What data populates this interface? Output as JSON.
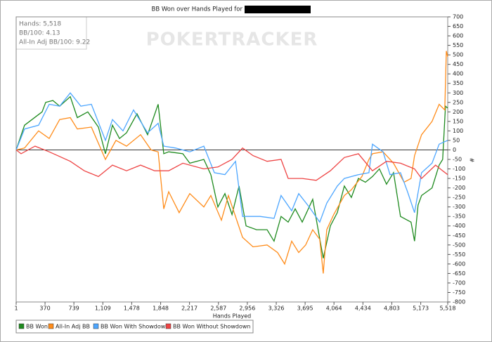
{
  "chart_data": {
    "type": "line",
    "title": "BB Won over Hands Played for",
    "watermark": "POKERTRACKER",
    "stats": [
      "Hands: 5,518",
      "BB/100: 4.13",
      "All-In Adj BB/100: 9.22"
    ],
    "x_label": "Hands Played",
    "y_label": "#",
    "xlim": [
      1,
      5518
    ],
    "xticks": [
      1,
      370,
      739,
      {
        "value": 1109,
        "label": "1,109"
      },
      {
        "value": 1478,
        "label": "1,478"
      },
      {
        "value": 1848,
        "label": "1,848"
      },
      {
        "value": 2217,
        "label": "2,217"
      },
      {
        "value": 2587,
        "label": "2,587"
      },
      {
        "value": 2956,
        "label": "2,956"
      },
      {
        "value": 3326,
        "label": "3,326"
      },
      {
        "value": 3695,
        "label": "3,695"
      },
      {
        "value": 4064,
        "label": "4,064"
      },
      {
        "value": 4434,
        "label": "4,434"
      },
      {
        "value": 4803,
        "label": "4,803"
      },
      {
        "value": 5173,
        "label": "5,173"
      },
      {
        "value": 5518,
        "label": "5,518"
      }
    ],
    "ylim": [
      -800,
      700
    ],
    "yticks": [
      -800,
      -750,
      -700,
      -650,
      -600,
      -550,
      -500,
      -450,
      -400,
      -350,
      -300,
      -250,
      -200,
      -150,
      -100,
      -50,
      0,
      50,
      100,
      150,
      200,
      250,
      300,
      350,
      400,
      450,
      500,
      550,
      600,
      650,
      700
    ],
    "series": [
      {
        "name": "BB Won",
        "color": "#1e8a1e",
        "x": [
          1,
          108,
          333,
          378,
          470,
          557,
          693,
          783,
          917,
          1052,
          1142,
          1232,
          1322,
          1412,
          1546,
          1681,
          1816,
          1888,
          1951,
          2131,
          2220,
          2400,
          2490,
          2580,
          2670,
          2760,
          2850,
          2940,
          3074,
          3209,
          3298,
          3388,
          3478,
          3568,
          3658,
          3792,
          3927,
          4017,
          4106,
          4196,
          4286,
          4376,
          4466,
          4556,
          4645,
          4735,
          4825,
          4914,
          5049,
          5094,
          5139,
          5184,
          5318,
          5408,
          5453,
          5489,
          5518
        ],
        "values": [
          0,
          130,
          200,
          250,
          260,
          230,
          280,
          170,
          200,
          120,
          -20,
          130,
          60,
          90,
          190,
          80,
          240,
          -20,
          -10,
          -20,
          -70,
          -50,
          -130,
          -300,
          -230,
          -340,
          -190,
          -400,
          -420,
          -420,
          -480,
          -350,
          -380,
          -310,
          -380,
          -260,
          -570,
          -400,
          -330,
          -190,
          -250,
          -150,
          -170,
          -140,
          -100,
          -180,
          -120,
          -350,
          -380,
          -480,
          -290,
          -240,
          -200,
          -80,
          -50,
          230,
          220
        ]
      },
      {
        "name": "All-In Adj BB",
        "color": "#ff8c1a",
        "x": [
          1,
          108,
          288,
          423,
          557,
          693,
          783,
          962,
          1142,
          1277,
          1412,
          1591,
          1726,
          1816,
          1888,
          1951,
          2085,
          2220,
          2400,
          2490,
          2625,
          2715,
          2895,
          3029,
          3209,
          3343,
          3433,
          3523,
          3613,
          3702,
          3792,
          3882,
          3927,
          3972,
          4061,
          4196,
          4286,
          4421,
          4511,
          4556,
          4691,
          4825,
          4960,
          5049,
          5094,
          5184,
          5318,
          5408,
          5480,
          5500,
          5518
        ],
        "values": [
          0,
          10,
          100,
          60,
          160,
          170,
          110,
          120,
          -50,
          50,
          20,
          80,
          0,
          -10,
          -310,
          -220,
          -330,
          -230,
          -300,
          -240,
          -370,
          -240,
          -460,
          -510,
          -500,
          -540,
          -600,
          -480,
          -540,
          -500,
          -420,
          -470,
          -650,
          -420,
          -340,
          -240,
          -210,
          -140,
          -50,
          -20,
          -10,
          -70,
          -170,
          -150,
          -30,
          80,
          150,
          240,
          210,
          520,
          490
        ]
      },
      {
        "name": "BB Won With Showdown",
        "color": "#4da6ff",
        "x": [
          1,
          108,
          288,
          423,
          557,
          693,
          828,
          962,
          1142,
          1232,
          1367,
          1502,
          1681,
          1816,
          1888,
          2040,
          2220,
          2400,
          2535,
          2670,
          2805,
          2895,
          3119,
          3298,
          3388,
          3523,
          3613,
          3747,
          3882,
          3972,
          4106,
          4196,
          4376,
          4511,
          4556,
          4691,
          4780,
          4914,
          5004,
          5094,
          5184,
          5318,
          5408,
          5518
        ],
        "values": [
          0,
          110,
          130,
          240,
          230,
          300,
          230,
          240,
          50,
          160,
          100,
          210,
          90,
          140,
          20,
          10,
          -10,
          20,
          -120,
          -130,
          -60,
          -350,
          -350,
          -360,
          -240,
          -320,
          -230,
          -300,
          -380,
          -280,
          -190,
          -150,
          -130,
          -120,
          30,
          -10,
          -130,
          -120,
          -220,
          -330,
          -120,
          -70,
          30,
          50
        ]
      },
      {
        "name": "BB Won Without Showdown",
        "color": "#ee4444",
        "x": [
          1,
          64,
          243,
          423,
          693,
          872,
          1052,
          1232,
          1412,
          1591,
          1771,
          1951,
          2131,
          2400,
          2580,
          2760,
          2895,
          3029,
          3209,
          3388,
          3478,
          3658,
          3837,
          4017,
          4196,
          4376,
          4556,
          4735,
          4914,
          5094,
          5184,
          5363,
          5453,
          5518
        ],
        "values": [
          0,
          -20,
          20,
          -10,
          -60,
          -110,
          -140,
          -80,
          -110,
          -80,
          -110,
          -110,
          -70,
          -100,
          -90,
          -50,
          10,
          -30,
          -60,
          -50,
          -150,
          -150,
          -160,
          -110,
          -40,
          -20,
          -110,
          -60,
          -70,
          -100,
          -150,
          -80,
          -110,
          -130
        ]
      }
    ]
  }
}
